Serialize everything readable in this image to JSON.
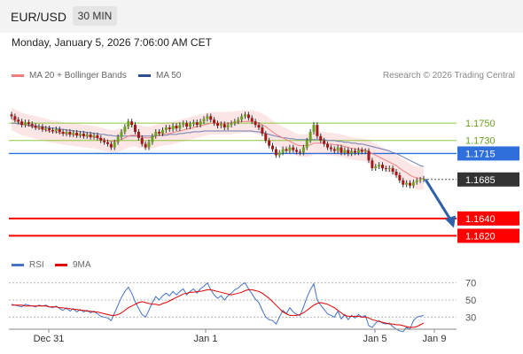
{
  "header": {
    "pair": "EUR/USD",
    "timeframe": "30 MIN",
    "datetime": "Monday, January 5, 2026 7:06:00 AM CET",
    "credit": "Research © 2026 Trading Central"
  },
  "legend_main": [
    {
      "label": "MA 20 + Bollinger Bands",
      "color": "#f08080"
    },
    {
      "label": "MA 50",
      "color": "#2f4f8f"
    }
  ],
  "legend_rsi": [
    {
      "label": "RSI",
      "color": "#4472c4"
    },
    {
      "label": "9MA",
      "color": "#e00000"
    }
  ],
  "chart_data": [
    {
      "type": "candlestick",
      "title": "EUR/USD 30 MIN",
      "x_ticks": [
        "Dec 31",
        "Jan 1",
        "Jan 5",
        "Jan 9"
      ],
      "y_range": [
        1.16,
        1.179
      ],
      "current_price": {
        "label": "1.1685",
        "value": 1.1685
      },
      "levels": [
        {
          "label": "1.1750",
          "value": 1.175,
          "kind": "resistance",
          "color": "#8dc63f"
        },
        {
          "label": "1.1730",
          "value": 1.173,
          "kind": "resistance",
          "color": "#8dc63f"
        },
        {
          "label": "1.1715",
          "value": 1.1715,
          "kind": "pivot",
          "color": "#2f6fdb"
        },
        {
          "label": "1.1640",
          "value": 1.164,
          "kind": "support",
          "color": "#ff0000"
        },
        {
          "label": "1.1620",
          "value": 1.162,
          "kind": "support",
          "color": "#ff0000"
        }
      ],
      "forecast_arrow": {
        "from": 1.1685,
        "to": 1.1625,
        "direction": "down",
        "color": "#2f5fa8"
      },
      "closes": [
        1.1758,
        1.1754,
        1.1752,
        1.1748,
        1.1751,
        1.1749,
        1.1747,
        1.1745,
        1.1746,
        1.1743,
        1.1744,
        1.1742,
        1.1741,
        1.1743,
        1.174,
        1.1738,
        1.174,
        1.1737,
        1.1739,
        1.1736,
        1.1738,
        1.1735,
        1.1737,
        1.1734,
        1.1736,
        1.1733,
        1.173,
        1.1728,
        1.1726,
        1.1722,
        1.1728,
        1.1734,
        1.174,
        1.1746,
        1.1752,
        1.1748,
        1.174,
        1.1733,
        1.1726,
        1.1722,
        1.1728,
        1.1735,
        1.174,
        1.1738,
        1.1742,
        1.1745,
        1.1743,
        1.1747,
        1.1744,
        1.1748,
        1.175,
        1.1746,
        1.1749,
        1.1751,
        1.1748,
        1.1752,
        1.1755,
        1.1758,
        1.1754,
        1.175,
        1.1747,
        1.1749,
        1.1745,
        1.1748,
        1.175,
        1.1752,
        1.1754,
        1.1758,
        1.176,
        1.1756,
        1.1752,
        1.1748,
        1.1745,
        1.1738,
        1.173,
        1.1724,
        1.172,
        1.1713,
        1.1716,
        1.172,
        1.1718,
        1.1722,
        1.1719,
        1.1717,
        1.1716,
        1.1722,
        1.173,
        1.174,
        1.1748,
        1.1735,
        1.173,
        1.1726,
        1.1722,
        1.172,
        1.1718,
        1.1722,
        1.1716,
        1.1719,
        1.1715,
        1.1718,
        1.1716,
        1.1719,
        1.1717,
        1.1718,
        1.1707,
        1.1698,
        1.17,
        1.1702,
        1.1698,
        1.1697,
        1.1698,
        1.1694,
        1.169,
        1.1684,
        1.1679,
        1.1681,
        1.1678,
        1.1682,
        1.1684,
        1.1685,
        1.1686
      ],
      "ma20": [
        1.1755,
        1.1753,
        1.1751,
        1.1749,
        1.1748,
        1.1747,
        1.1746,
        1.1745,
        1.1744,
        1.1743,
        1.1742,
        1.1741,
        1.174,
        1.174,
        1.1739,
        1.1738,
        1.1738,
        1.1737,
        1.1737,
        1.1736,
        1.1736,
        1.1735,
        1.1735,
        1.1734,
        1.1734,
        1.1733,
        1.1732,
        1.1731,
        1.173,
        1.1729,
        1.1729,
        1.173,
        1.1731,
        1.1733,
        1.1735,
        1.1736,
        1.1736,
        1.1735,
        1.1734,
        1.1733,
        1.1733,
        1.1734,
        1.1735,
        1.1736,
        1.1737,
        1.1738,
        1.1738,
        1.1739,
        1.174,
        1.1741,
        1.1742,
        1.1743,
        1.1744,
        1.1745,
        1.1746,
        1.1747,
        1.1748,
        1.1749,
        1.175,
        1.175,
        1.175,
        1.175,
        1.175,
        1.175,
        1.175,
        1.1751,
        1.1751,
        1.1752,
        1.1752,
        1.1752,
        1.1752,
        1.1751,
        1.175,
        1.1748,
        1.1746,
        1.1743,
        1.174,
        1.1737,
        1.1735,
        1.1733,
        1.1731,
        1.1729,
        1.1727,
        1.1725,
        1.1724,
        1.1724,
        1.1724,
        1.1725,
        1.1727,
        1.1727,
        1.1727,
        1.1727,
        1.1726,
        1.1726,
        1.1725,
        1.1725,
        1.1724,
        1.1723,
        1.1722,
        1.1721,
        1.172,
        1.172,
        1.1719,
        1.1719,
        1.1717,
        1.1715,
        1.1713,
        1.1711,
        1.1709,
        1.1707,
        1.1705,
        1.1703,
        1.1701,
        1.1698,
        1.1695,
        1.1693,
        1.169,
        1.1688,
        1.1687,
        1.1686,
        1.1686
      ],
      "ma50": [
        1.175,
        1.175,
        1.1749,
        1.1749,
        1.1748,
        1.1748,
        1.1747,
        1.1747,
        1.1746,
        1.1746,
        1.1745,
        1.1745,
        1.1744,
        1.1744,
        1.1743,
        1.1743,
        1.1742,
        1.1742,
        1.1741,
        1.1741,
        1.174,
        1.174,
        1.1739,
        1.1739,
        1.1738,
        1.1738,
        1.1737,
        1.1737,
        1.1736,
        1.1736,
        1.1735,
        1.1735,
        1.1735,
        1.1735,
        1.1735,
        1.1735,
        1.1735,
        1.1735,
        1.1735,
        1.1735,
        1.1735,
        1.1735,
        1.1736,
        1.1736,
        1.1736,
        1.1736,
        1.1737,
        1.1737,
        1.1737,
        1.1738,
        1.1738,
        1.1739,
        1.1739,
        1.174,
        1.174,
        1.174,
        1.1741,
        1.1741,
        1.1741,
        1.1741,
        1.1741,
        1.1741,
        1.1741,
        1.1741,
        1.1741,
        1.1741,
        1.1741,
        1.1741,
        1.1741,
        1.1741,
        1.1741,
        1.174,
        1.174,
        1.1739,
        1.1738,
        1.1737,
        1.1736,
        1.1735,
        1.1734,
        1.1733,
        1.1733,
        1.1732,
        1.1732,
        1.1731,
        1.1731,
        1.1731,
        1.1731,
        1.1731,
        1.1731,
        1.1731,
        1.1731,
        1.1731,
        1.173,
        1.173,
        1.173,
        1.1729,
        1.1729,
        1.1728,
        1.1728,
        1.1727,
        1.1727,
        1.1726,
        1.1726,
        1.1725,
        1.1724,
        1.1723,
        1.1722,
        1.1721,
        1.172,
        1.1719,
        1.1718,
        1.1716,
        1.1715,
        1.1713,
        1.1711,
        1.1709,
        1.1707,
        1.1705,
        1.1703,
        1.1701,
        1.17
      ]
    },
    {
      "type": "line",
      "title": "RSI",
      "y_ticks": [
        30,
        50,
        70
      ],
      "y_range": [
        20,
        80
      ],
      "rsi": [
        45,
        44,
        43,
        42,
        45,
        44,
        43,
        42,
        44,
        43,
        44,
        42,
        41,
        43,
        40,
        38,
        41,
        37,
        40,
        36,
        39,
        36,
        38,
        35,
        37,
        34,
        31,
        30,
        29,
        26,
        35,
        44,
        53,
        60,
        65,
        58,
        48,
        40,
        33,
        30,
        38,
        47,
        54,
        50,
        55,
        58,
        55,
        60,
        56,
        60,
        63,
        56,
        60,
        63,
        58,
        63,
        66,
        70,
        62,
        56,
        52,
        55,
        50,
        55,
        58,
        62,
        64,
        68,
        70,
        63,
        57,
        51,
        47,
        38,
        30,
        27,
        26,
        22,
        30,
        38,
        34,
        41,
        36,
        33,
        32,
        42,
        53,
        62,
        69,
        50,
        44,
        39,
        34,
        32,
        30,
        37,
        28,
        33,
        27,
        32,
        29,
        33,
        30,
        32,
        20,
        18,
        23,
        26,
        23,
        22,
        23,
        19,
        16,
        14,
        13,
        18,
        16,
        26,
        30,
        31,
        32
      ],
      "rsi_ma9": [
        44,
        44,
        44,
        44,
        43,
        43,
        43,
        43,
        43,
        43,
        43,
        42,
        42,
        42,
        41,
        41,
        40,
        40,
        39,
        39,
        38,
        38,
        37,
        37,
        36,
        36,
        35,
        34,
        33,
        32,
        32,
        33,
        35,
        38,
        41,
        43,
        45,
        47,
        48,
        47,
        46,
        45,
        45,
        44,
        46,
        47,
        49,
        51,
        53,
        55,
        57,
        58,
        59,
        59,
        60,
        60,
        61,
        62,
        62,
        61,
        60,
        59,
        58,
        57,
        56,
        57,
        58,
        59,
        61,
        62,
        62,
        61,
        60,
        58,
        55,
        52,
        48,
        44,
        40,
        36,
        34,
        32,
        32,
        32,
        33,
        35,
        38,
        41,
        44,
        46,
        47,
        46,
        45,
        43,
        41,
        38,
        35,
        32,
        31,
        31,
        31,
        31,
        30,
        30,
        29,
        27,
        26,
        25,
        24,
        23,
        22,
        22,
        21,
        21,
        20,
        19,
        18,
        18,
        19,
        21,
        23
      ]
    }
  ]
}
